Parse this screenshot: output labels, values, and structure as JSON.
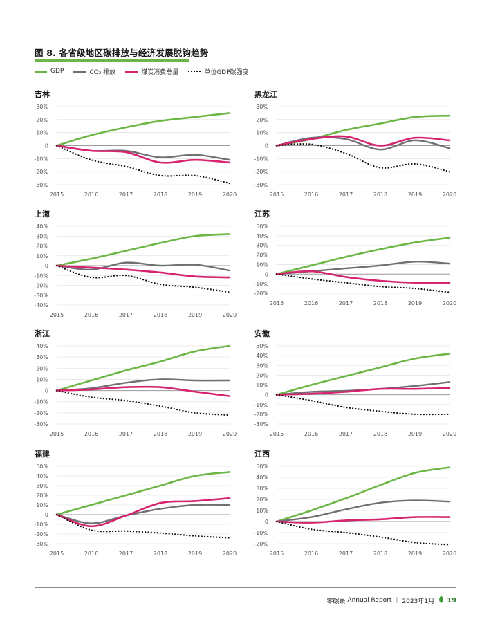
{
  "figure": {
    "label": "图 8.",
    "title": "各省级地区碳排放与经济发展脱钩趋势"
  },
  "legend": [
    {
      "name": "GDP",
      "color": "#6cb645",
      "style": "solid"
    },
    {
      "name": "CO₂ 排放",
      "color": "#707070",
      "style": "solid"
    },
    {
      "name": "煤炭消费总量",
      "color": "#d6246e",
      "style": "solid"
    },
    {
      "name": "单位GDP碳强度",
      "color": "#111111",
      "style": "dotted"
    }
  ],
  "chart_data": [
    {
      "type": "line",
      "title": "吉林",
      "x": [
        2015,
        2016,
        2017,
        2018,
        2019,
        2020
      ],
      "ylim": [
        -30,
        30
      ],
      "yticks": [
        "30%",
        "20%",
        "10%",
        "0",
        "-10%",
        "-20%",
        "-30%"
      ],
      "series": [
        {
          "name": "GDP",
          "values": [
            0,
            8,
            14,
            19,
            22,
            25
          ]
        },
        {
          "name": "CO₂ 排放",
          "values": [
            0,
            -4,
            -4,
            -9,
            -7,
            -11
          ]
        },
        {
          "name": "煤炭消费总量",
          "values": [
            0,
            -4,
            -5,
            -13,
            -11,
            -13
          ]
        },
        {
          "name": "单位GDP碳强度",
          "values": [
            0,
            -11,
            -16,
            -23,
            -23,
            -29
          ]
        }
      ]
    },
    {
      "type": "line",
      "title": "黑龙江",
      "x": [
        2015,
        2016,
        2017,
        2018,
        2019,
        2020
      ],
      "ylim": [
        -30,
        30
      ],
      "yticks": [
        "30%",
        "20%",
        "10%",
        "0",
        "-10%",
        "-20%",
        "-30%"
      ],
      "series": [
        {
          "name": "GDP",
          "values": [
            0,
            5,
            12,
            17,
            22,
            23
          ]
        },
        {
          "name": "CO₂ 排放",
          "values": [
            0,
            6,
            5,
            -3,
            4,
            -2
          ]
        },
        {
          "name": "煤炭消费总量",
          "values": [
            0,
            5,
            7,
            0,
            6,
            4
          ]
        },
        {
          "name": "单位GDP碳强度",
          "values": [
            0,
            1,
            -6,
            -17,
            -14,
            -20
          ]
        }
      ]
    },
    {
      "type": "line",
      "title": "上海",
      "x": [
        2015,
        2016,
        2017,
        2018,
        2019,
        2020
      ],
      "ylim": [
        -40,
        40
      ],
      "yticks": [
        "40%",
        "30%",
        "20%",
        "10%",
        "0",
        "-10%",
        "-20%",
        "-30%",
        "-40%"
      ],
      "series": [
        {
          "name": "GDP",
          "values": [
            0,
            7,
            15,
            23,
            30,
            32
          ]
        },
        {
          "name": "CO₂ 排放",
          "values": [
            0,
            -4,
            3,
            0,
            1,
            -5
          ]
        },
        {
          "name": "煤炭消费总量",
          "values": [
            0,
            -2,
            -4,
            -7,
            -11,
            -12
          ]
        },
        {
          "name": "单位GDP碳强度",
          "values": [
            0,
            -12,
            -10,
            -19,
            -22,
            -27
          ]
        }
      ]
    },
    {
      "type": "line",
      "title": "江苏",
      "x": [
        2015,
        2016,
        2017,
        2018,
        2019,
        2020
      ],
      "ylim": [
        -20,
        50
      ],
      "yticks": [
        "50%",
        "40%",
        "30%",
        "20%",
        "10%",
        "0",
        "-10%",
        "-20%"
      ],
      "series": [
        {
          "name": "GDP",
          "values": [
            0,
            9,
            18,
            26,
            33,
            38
          ]
        },
        {
          "name": "CO₂ 排放",
          "values": [
            0,
            3,
            6,
            9,
            13,
            11
          ]
        },
        {
          "name": "煤炭消费总量",
          "values": [
            0,
            3,
            -3,
            -7,
            -9,
            -9
          ]
        },
        {
          "name": "单位GDP碳强度",
          "values": [
            0,
            -5,
            -9,
            -13,
            -15,
            -19
          ]
        }
      ]
    },
    {
      "type": "line",
      "title": "浙江",
      "x": [
        2015,
        2016,
        2017,
        2018,
        2019,
        2020
      ],
      "ylim": [
        -30,
        40
      ],
      "yticks": [
        "40%",
        "30%",
        "20%",
        "10%",
        "0",
        "-10%",
        "-20%",
        "-30%"
      ],
      "series": [
        {
          "name": "GDP",
          "values": [
            0,
            9,
            18,
            26,
            35,
            40
          ]
        },
        {
          "name": "CO₂ 排放",
          "values": [
            0,
            2,
            7,
            10,
            9,
            9
          ]
        },
        {
          "name": "煤炭消费总量",
          "values": [
            0,
            1,
            3,
            3,
            -1,
            -5
          ]
        },
        {
          "name": "单位GDP碳强度",
          "values": [
            0,
            -6,
            -9,
            -14,
            -20,
            -22
          ]
        }
      ]
    },
    {
      "type": "line",
      "title": "安徽",
      "x": [
        2015,
        2016,
        2017,
        2018,
        2019,
        2020
      ],
      "ylim": [
        -30,
        50
      ],
      "yticks": [
        "50%",
        "40%",
        "30%",
        "20%",
        "10%",
        "0",
        "-10%",
        "-20%",
        "-30%"
      ],
      "series": [
        {
          "name": "GDP",
          "values": [
            0,
            10,
            19,
            28,
            37,
            42
          ]
        },
        {
          "name": "CO₂ 排放",
          "values": [
            0,
            3,
            4,
            6,
            9,
            13
          ]
        },
        {
          "name": "煤炭消费总量",
          "values": [
            0,
            1,
            3,
            6,
            6,
            7
          ]
        },
        {
          "name": "单位GDP碳强度",
          "values": [
            0,
            -6,
            -13,
            -17,
            -20,
            -20
          ]
        }
      ]
    },
    {
      "type": "line",
      "title": "福建",
      "x": [
        2015,
        2016,
        2017,
        2018,
        2019,
        2020
      ],
      "ylim": [
        -30,
        50
      ],
      "yticks": [
        "50%",
        "40%",
        "30%",
        "20%",
        "10%",
        "0",
        "-10%",
        "-20%",
        "-30%"
      ],
      "series": [
        {
          "name": "GDP",
          "values": [
            0,
            10,
            20,
            30,
            40,
            44
          ]
        },
        {
          "name": "CO₂ 排放",
          "values": [
            0,
            -9,
            -1,
            6,
            10,
            10
          ]
        },
        {
          "name": "煤炭消费总量",
          "values": [
            0,
            -12,
            -1,
            12,
            14,
            17
          ]
        },
        {
          "name": "单位GDP碳强度",
          "values": [
            0,
            -16,
            -17,
            -19,
            -22,
            -24
          ]
        }
      ]
    },
    {
      "type": "line",
      "title": "江西",
      "x": [
        2015,
        2016,
        2017,
        2018,
        2019,
        2020
      ],
      "ylim": [
        -20,
        50
      ],
      "yticks": [
        "50%",
        "40%",
        "30%",
        "20%",
        "10%",
        "0",
        "-10%",
        "-20%"
      ],
      "series": [
        {
          "name": "GDP",
          "values": [
            0,
            10,
            21,
            33,
            44,
            49
          ]
        },
        {
          "name": "CO₂ 排放",
          "values": [
            0,
            4,
            11,
            17,
            19,
            18
          ]
        },
        {
          "name": "煤炭消费总量",
          "values": [
            0,
            -1,
            1,
            2,
            4,
            4
          ]
        },
        {
          "name": "单位GDP碳强度",
          "values": [
            0,
            -7,
            -10,
            -14,
            -19,
            -21
          ]
        }
      ]
    }
  ],
  "footer": {
    "brand": "零碳录",
    "report": "Annual Report",
    "date": "2023年1月",
    "page": "19"
  }
}
